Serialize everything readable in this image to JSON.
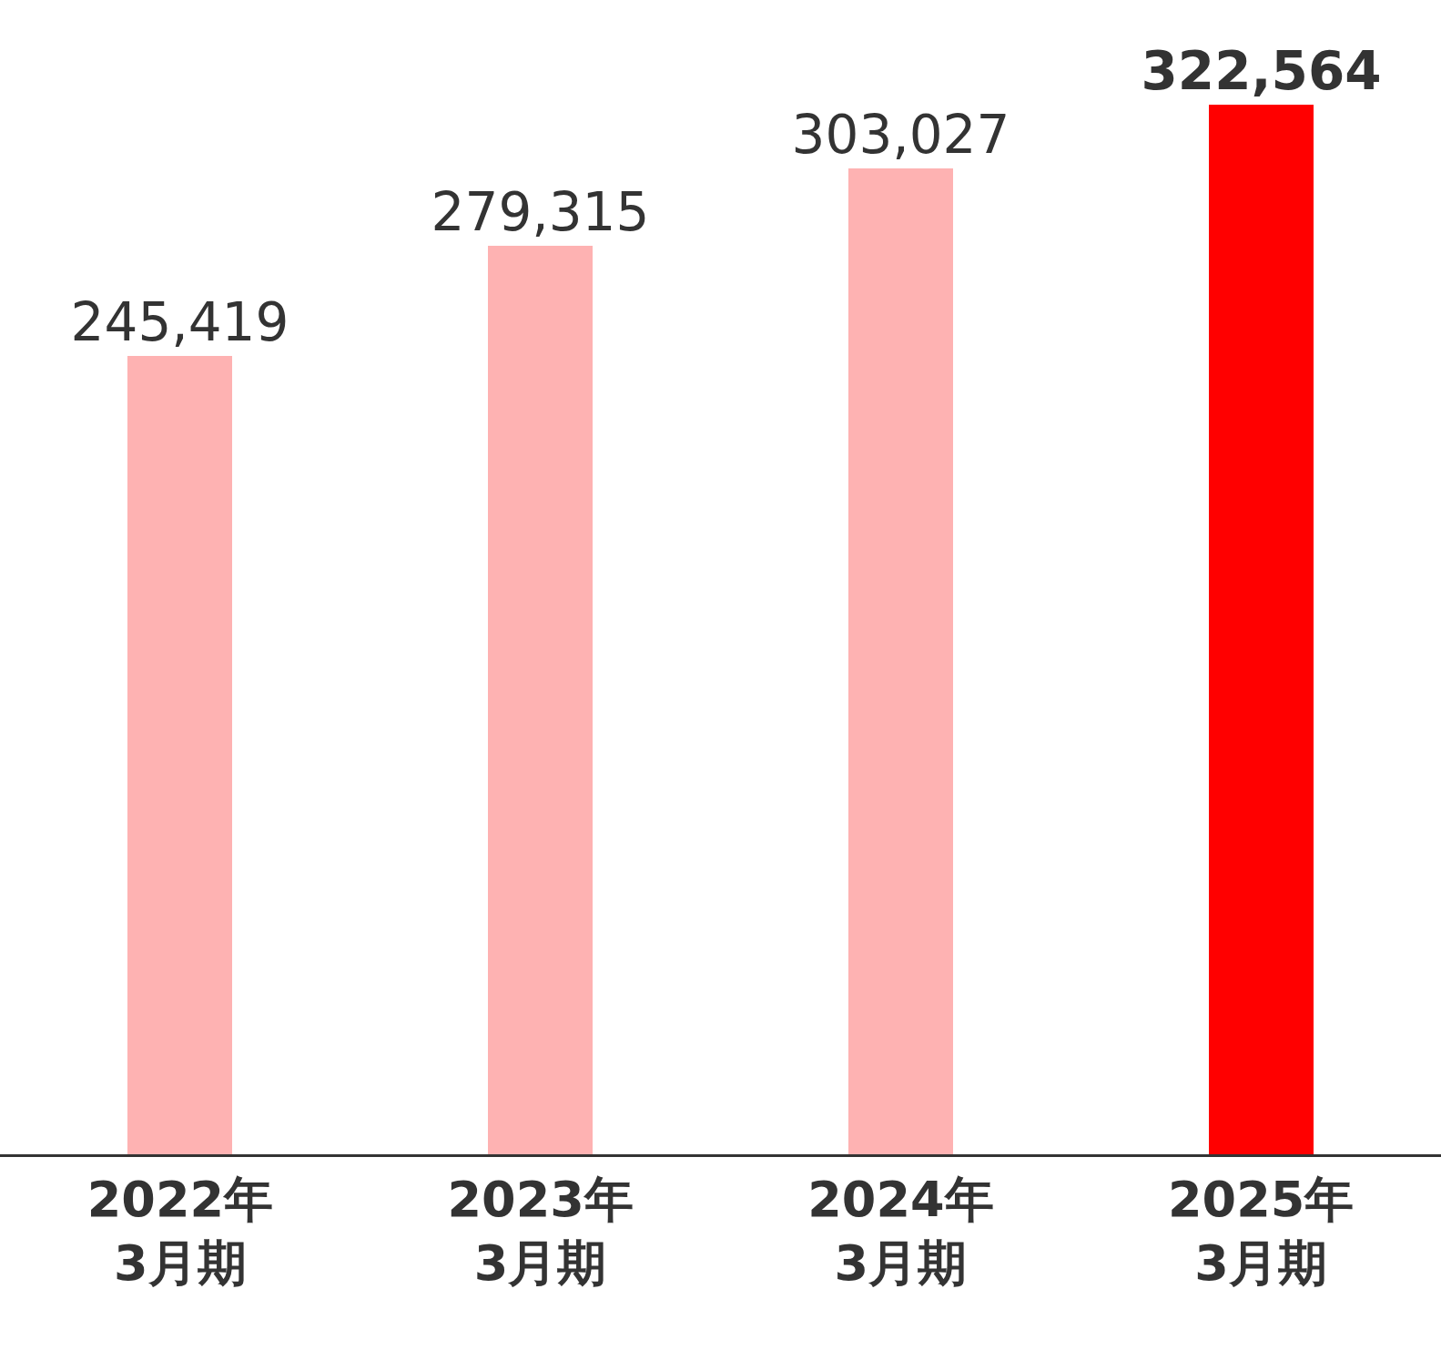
{
  "chart_data": {
    "type": "bar",
    "categories": [
      "2022年\n3月期",
      "2023年\n3月期",
      "2024年\n3月期",
      "2025年\n3月期"
    ],
    "values": [
      245419,
      279315,
      303027,
      322564
    ],
    "colors": [
      "#feb2b2",
      "#feb2b2",
      "#feb2b2",
      "#ff0000"
    ],
    "value_labels": [
      "245,419",
      "279,315",
      "303,027",
      "322,564"
    ]
  }
}
